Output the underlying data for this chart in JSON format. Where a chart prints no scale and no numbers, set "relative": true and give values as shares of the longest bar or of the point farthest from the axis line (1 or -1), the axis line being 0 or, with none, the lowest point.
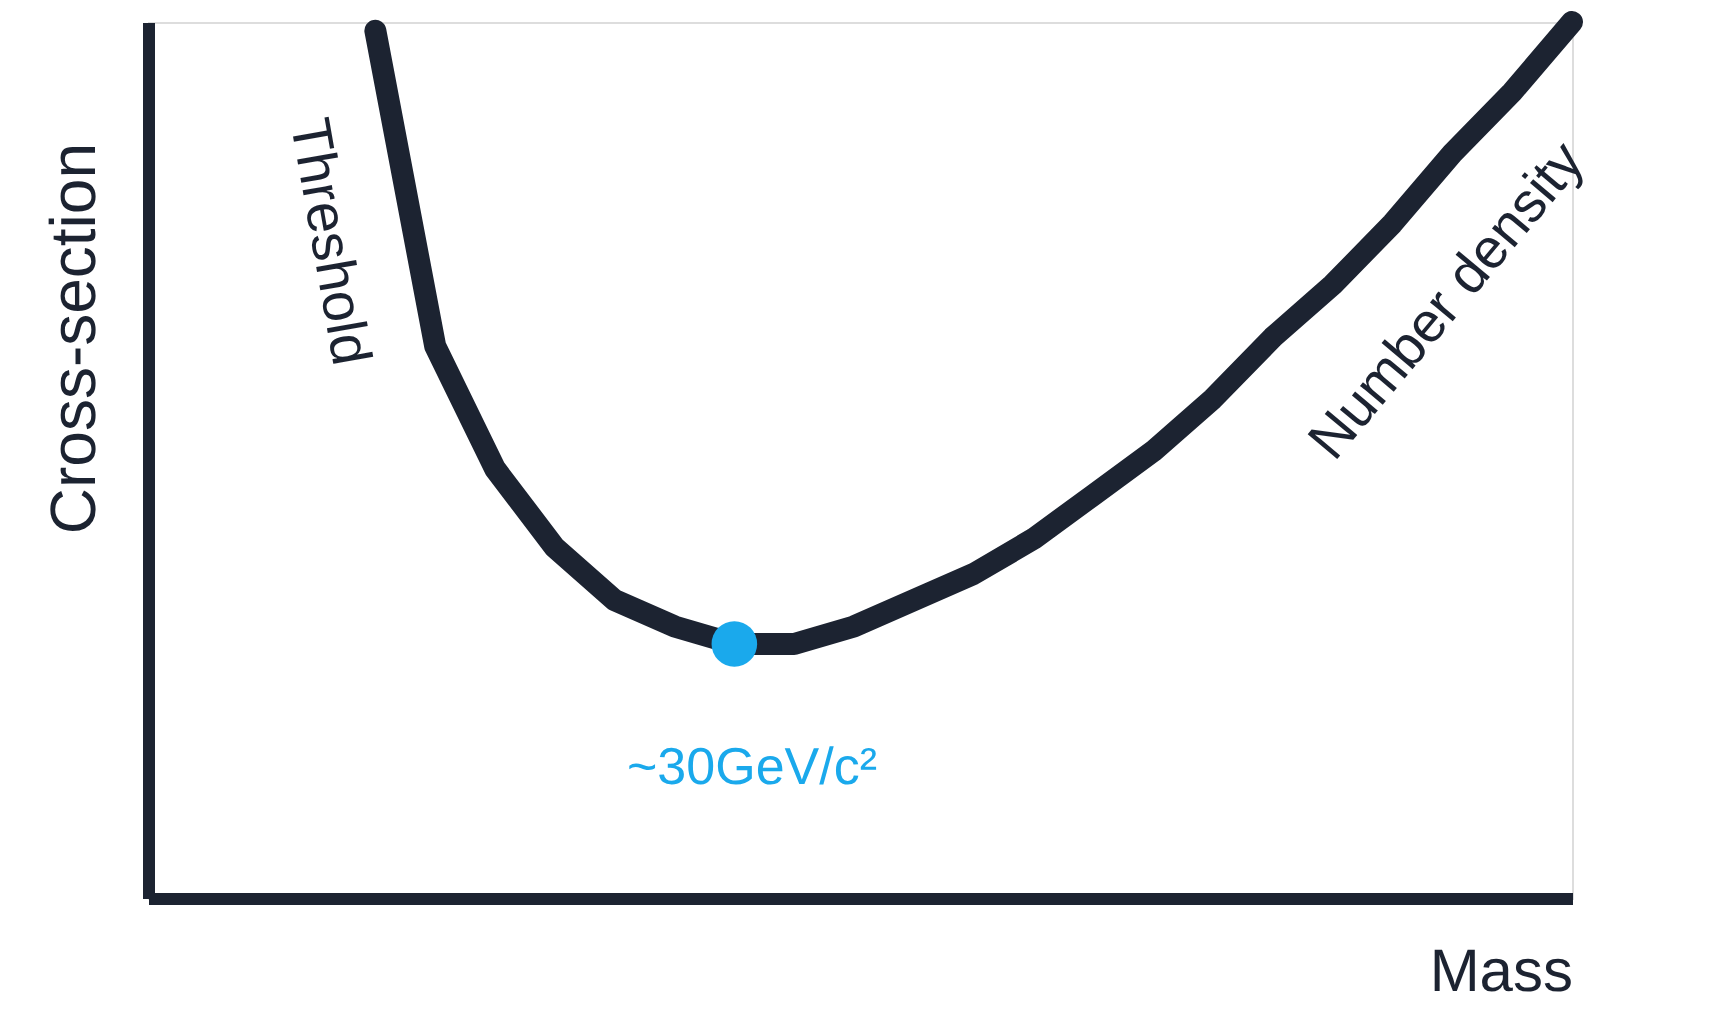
{
  "chart_data": {
    "type": "line",
    "relative": true,
    "xlabel": "Mass",
    "ylabel": "Cross-section",
    "grid": false,
    "legend": false,
    "tick_labels": false,
    "categories": [
      null,
      null,
      null,
      null,
      null,
      null,
      null,
      null,
      null,
      null,
      null,
      null,
      null,
      null,
      null,
      null,
      null,
      null,
      null,
      null,
      null
    ],
    "series": [
      {
        "color": "#1c2331",
        "values": [
          0.99,
          0.63,
          0.49,
          0.4,
          0.34,
          0.31,
          0.29,
          0.29,
          0.31,
          0.34,
          0.37,
          0.41,
          0.46,
          0.51,
          0.57,
          0.64,
          0.7,
          0.77,
          0.85,
          0.92,
          1.0
        ]
      }
    ],
    "annotations": [
      "Threshold",
      "Number density",
      {
        "text": "~30GeV/c²",
        "y": 0.29
      }
    ]
  }
}
